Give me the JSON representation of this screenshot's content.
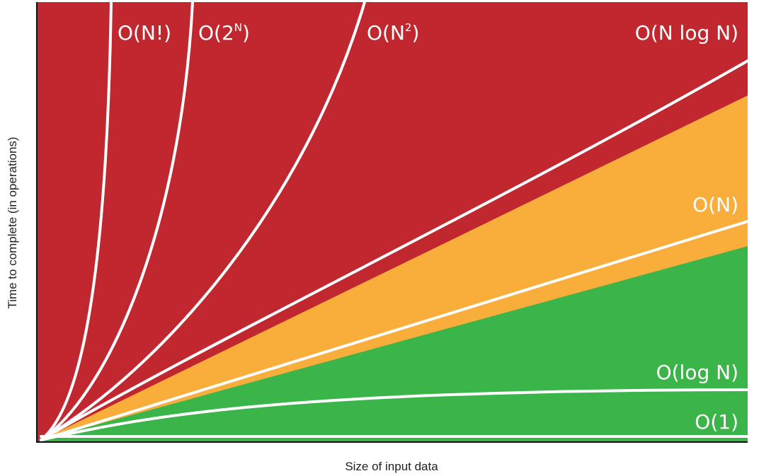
{
  "chart_data": {
    "type": "area",
    "title": "",
    "xlabel": "Size of input data",
    "ylabel": "Time to complete (in operations)",
    "zone_colors": {
      "red": "#c0272f",
      "orange": "#f9ae3c",
      "green": "#3bb54a"
    },
    "line_color": "#ffffff",
    "axis_color": "#111111",
    "series": [
      {
        "name": "O(N!)",
        "label": {
          "base": "O(N!)"
        }
      },
      {
        "name": "O(2^N)",
        "label": {
          "base": "O(2",
          "sup": "N",
          "close": ")"
        }
      },
      {
        "name": "O(N^2)",
        "label": {
          "base": "O(N",
          "sup": "2",
          "close": ")"
        }
      },
      {
        "name": "O(N log N)",
        "label": {
          "base": "O(N log N)"
        }
      },
      {
        "name": "O(N)",
        "label": {
          "base": "O(N)"
        }
      },
      {
        "name": "O(log N)",
        "label": {
          "base": "O(log N)"
        }
      },
      {
        "name": "O(1)",
        "label": {
          "base": "O(1)"
        }
      }
    ]
  }
}
